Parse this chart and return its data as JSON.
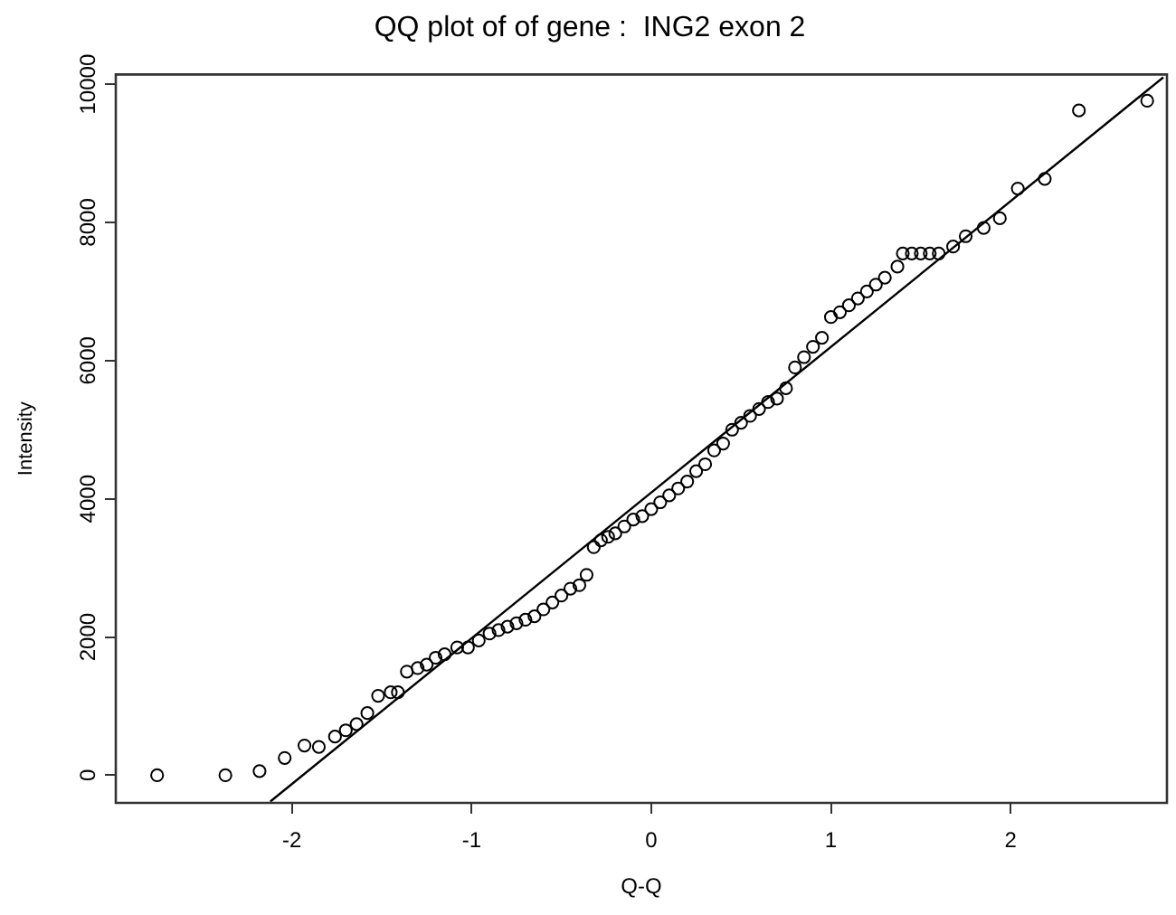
{
  "chart_data": {
    "type": "scatter",
    "title": "QQ plot of of gene :  ING2 exon 2",
    "xlabel": "Q-Q",
    "ylabel": "Intensity",
    "xlim": [
      -2.98,
      2.87
    ],
    "ylim": [
      -400,
      10140
    ],
    "xticks": [
      -2,
      -1,
      0,
      1,
      2
    ],
    "yticks": [
      0,
      2000,
      4000,
      6000,
      8000,
      10000
    ],
    "grid": false,
    "legend": false,
    "marker": "circle",
    "series": [
      {
        "type": "scatter",
        "color": "#000000",
        "x": [
          -2.75,
          -2.37,
          -2.18,
          -2.04,
          -1.93,
          -1.85,
          -1.76,
          -1.7,
          -1.64,
          -1.58,
          -1.52,
          -1.45,
          -1.41,
          -1.36,
          -1.3,
          -1.25,
          -1.2,
          -1.15,
          -1.08,
          -1.02,
          -0.96,
          -0.9,
          -0.85,
          -0.8,
          -0.75,
          -0.7,
          -0.65,
          -0.6,
          -0.55,
          -0.5,
          -0.45,
          -0.4,
          -0.36,
          -0.32,
          -0.28,
          -0.24,
          -0.2,
          -0.15,
          -0.1,
          -0.05,
          0,
          0.05,
          0.1,
          0.15,
          0.2,
          0.25,
          0.3,
          0.35,
          0.4,
          0.45,
          0.5,
          0.55,
          0.6,
          0.65,
          0.7,
          0.75,
          0.8,
          0.85,
          0.9,
          0.95,
          1.0,
          1.05,
          1.1,
          1.15,
          1.2,
          1.25,
          1.3,
          1.37,
          1.4,
          1.45,
          1.5,
          1.55,
          1.6,
          1.68,
          1.75,
          1.85,
          1.94,
          2.04,
          2.19,
          2.38,
          2.76
        ],
        "values": [
          0,
          0,
          60,
          250,
          430,
          410,
          560,
          650,
          740,
          900,
          1150,
          1200,
          1200,
          1500,
          1550,
          1600,
          1700,
          1750,
          1850,
          1850,
          1950,
          2050,
          2100,
          2150,
          2200,
          2250,
          2300,
          2400,
          2500,
          2600,
          2700,
          2750,
          2900,
          3300,
          3400,
          3450,
          3500,
          3600,
          3700,
          3750,
          3850,
          3950,
          4050,
          4150,
          4250,
          4400,
          4500,
          4700,
          4800,
          5000,
          5100,
          5200,
          5300,
          5400,
          5450,
          5600,
          5900,
          6050,
          6200,
          6330,
          6630,
          6700,
          6800,
          6900,
          7000,
          7100,
          7200,
          7360,
          7550,
          7550,
          7550,
          7550,
          7550,
          7650,
          7800,
          7920,
          8060,
          8490,
          8630,
          9620,
          9760
        ]
      },
      {
        "type": "line",
        "color": "#000000",
        "marker": "none",
        "x": [
          -2.12,
          2.85
        ],
        "values": [
          -380,
          10100
        ]
      }
    ]
  }
}
